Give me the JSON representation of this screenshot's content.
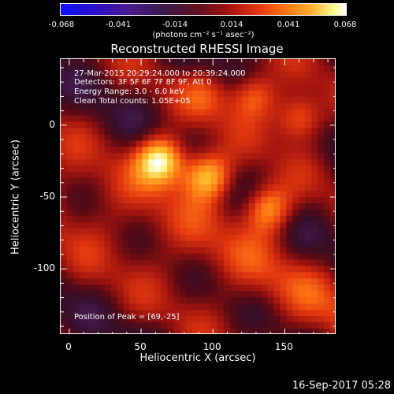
{
  "colorbar": {
    "ticks": [
      "-0.068",
      "-0.041",
      "-0.014",
      "0.014",
      "0.041",
      "0.068"
    ],
    "unit": "(photons cm⁻² s⁻¹ asec⁻²)"
  },
  "chart_data": {
    "type": "heatmap",
    "title": "Reconstructed RHESSI Image",
    "xlabel": "Heliocentric X (arcsec)",
    "ylabel": "Heliocentric Y (arcsec)",
    "xlim": [
      -6,
      186
    ],
    "ylim": [
      -146,
      46
    ],
    "xticks": [
      0,
      50,
      100,
      150
    ],
    "yticks": [
      0,
      -50,
      -100
    ],
    "color_range": [
      -0.068,
      0.068
    ],
    "colormap": "blue-purple-red-orange-yellow-white",
    "sources": [
      {
        "x": 64,
        "y": -24,
        "value": 0.068
      },
      {
        "x": 96,
        "y": -35,
        "value": 0.06
      },
      {
        "x": 138,
        "y": -58,
        "value": 0.05
      },
      {
        "x": 160,
        "y": 5,
        "value": 0.045
      },
      {
        "x": 128,
        "y": 21,
        "value": 0.04
      },
      {
        "x": 96,
        "y": 21,
        "value": 0.02
      }
    ],
    "annotations": {
      "time": "27-Mar-2015 20:29:24.000 to 20:39:24.000",
      "detectors": "Detectors: 3F 5F 6F 7F 8F 9F, Att 0",
      "energy": "Energy Range: 3.0 - 6.0 keV",
      "clean": "Clean     Total counts: 1.05E+05",
      "peak": "Position of Peak = [69,-25]"
    }
  },
  "footer": "16-Sep-2017 05:28"
}
